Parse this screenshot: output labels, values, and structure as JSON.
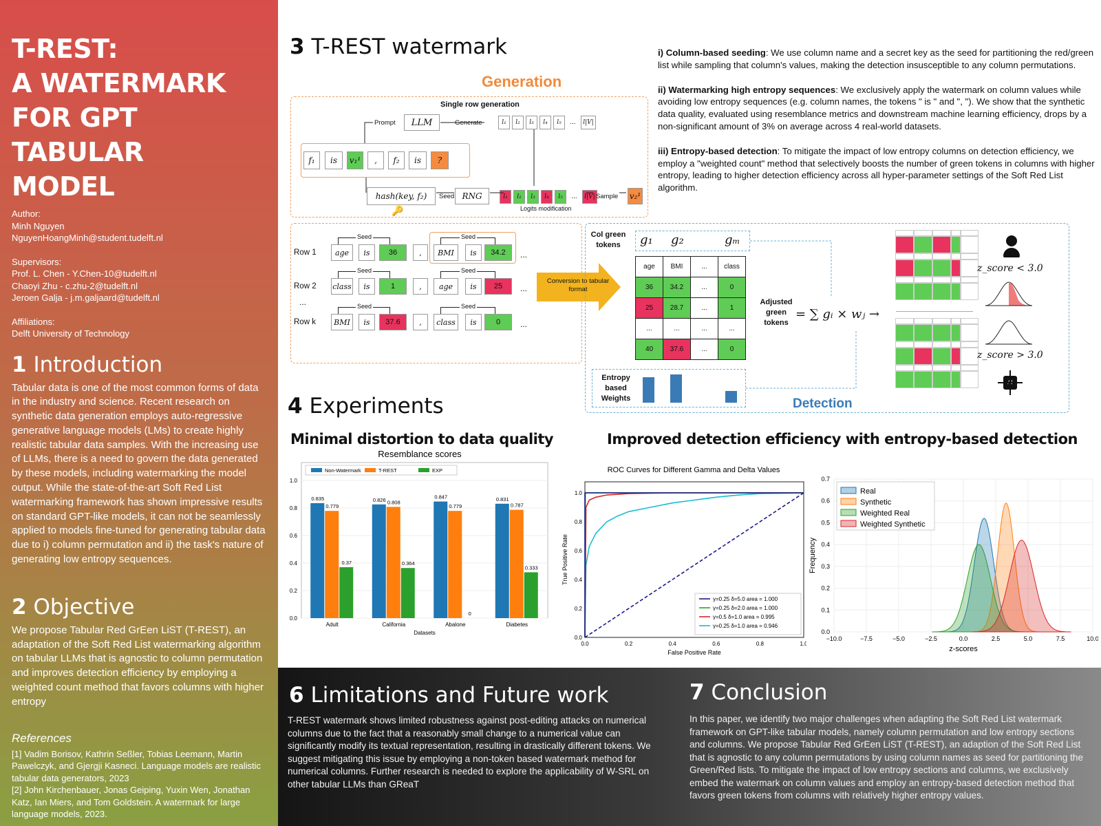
{
  "poster": {
    "title": [
      "T-REST:",
      "A WATERMARK",
      "FOR GPT TABULAR",
      "MODEL"
    ],
    "author_label": "Author:",
    "author_name": "Minh Nguyen",
    "author_email": "NguyenHoangMinh@student.tudelft.nl",
    "supervisors_label": "Supervisors:",
    "supervisors": [
      "Prof. L. Chen -  Y.Chen-10@tudelft.nl",
      "Chaoyi Zhu - c.zhu-2@tudelft.nl",
      "Jeroen Galja - j.m.galjaard@tudelft.nl"
    ],
    "affiliations_label": "Affiliations:",
    "affiliation": "Delft University of Technology"
  },
  "intro": {
    "num": "1",
    "title": "Introduction",
    "text": "Tabular data is one of the most common forms of data in the industry and science. Recent research on synthetic data generation employs auto-regressive generative language models (LMs) to create highly realistic tabular data samples. With the increasing use of LLMs, there is a need to govern the data generated by these models, including watermarking the model output. While the state-of-the-art Soft Red List watermarking framework has shown impressive results on standard GPT-like models, it can not be seamlessly applied to models fine-tuned for generating tabular data due to i) column permutation and ii) the task's nature of generating low entropy sequences."
  },
  "objective": {
    "num": "2",
    "title": "Objective",
    "text": "We propose Tabular Red GrEen LiST (T-REST), an adaptation of the Soft Red List watermarking algorithm on tabular LLMs that is agnostic to column permutation and improves detection efficiency by employing a weighted count method that favors columns with higher entropy"
  },
  "references": {
    "title": "References",
    "items": [
      "[1] Vadim Borisov, Kathrin Seßler, Tobias Leemann, Martin Pawelczyk, and Gjergji Kasneci. Language models are realistic tabular data generators, 2023",
      "[2] John Kirchenbauer, Jonas Geiping, Yuxin Wen, Jonathan Katz, Ian Miers, and Tom Goldstein. A watermark for large language models, 2023."
    ]
  },
  "watermark": {
    "num": "3",
    "title": "T-REST watermark",
    "generation_label": "Generation",
    "single_row": "Single row generation",
    "prompt": "Prompt",
    "llm": "LLM",
    "generate": "Generate",
    "vocab": [
      "l₁",
      "l₂",
      "l₃",
      "l₄",
      "l₅",
      "...",
      "l|V|"
    ],
    "input_tokens": [
      "f₁",
      "is",
      "v₁¹",
      ",",
      "f₂",
      "is",
      "?"
    ],
    "hash": "hash(key, f₂)",
    "seed": "Seed",
    "rng": "RNG",
    "sample": "Sample",
    "sampled": "v₂¹",
    "logits_label": "Logits modification",
    "rows": [
      {
        "label": "Row 1",
        "toks": [
          "age",
          "is",
          "36",
          ",",
          "BMI",
          "is",
          "34.2"
        ]
      },
      {
        "label": "Row 2",
        "toks": [
          "class",
          "is",
          "1",
          ",",
          "age",
          "is",
          "25"
        ]
      },
      {
        "label": "Row k",
        "toks": [
          "BMI",
          "is",
          "37.6",
          ",",
          "class",
          "is",
          "0"
        ]
      }
    ],
    "row_ellipsis": "...",
    "dots": "...",
    "conversion": "Conversion to tabular format",
    "col_green": "Col green tokens",
    "g_labels": [
      "g₁",
      "g₂",
      "gₘ"
    ],
    "table_head": [
      "age",
      "BMI",
      "...",
      "class"
    ],
    "table_rows": [
      [
        "36",
        "34.2",
        "...",
        "0"
      ],
      [
        "25",
        "28.7",
        "...",
        "1"
      ],
      [
        "...",
        "...",
        "...",
        "..."
      ],
      [
        "40",
        "37.6",
        "...",
        "0"
      ]
    ],
    "adjusted": "Adjusted green tokens",
    "formula": "= ∑ gᵢ × wⱼ →",
    "z_low": "z_score < 3.0",
    "z_high": "z_score > 3.0",
    "entropy_label": "Entropy based Weights",
    "detection_label": "Detection"
  },
  "methods": [
    {
      "head": "i) Column-based seeding",
      "text": ": We use column name and a secret key as the seed for partitioning the red/green list while sampling that column's values, making the detection insusceptible to any column permutations."
    },
    {
      "head": "ii) Watermarking high entropy sequences",
      "text": ": We exclusively apply the watermark on column values while avoiding low entropy sequences (e.g. column names, the tokens \" is \" and \", \"). We show that the synthetic data quality, evaluated using resemblance metrics and downstream machine learning efficiency, drops by a non-significant amount of 3% on average across 4 real-world datasets."
    },
    {
      "head": "iii) Entropy-based detection",
      "text": ": To mitigate the impact of low entropy columns on detection efficiency, we employ a \"weighted count\" method that selectively boosts the number of green tokens in columns with higher entropy, leading to higher detection efficiency across all hyper-parameter settings of the Soft Red List algorithm."
    }
  ],
  "experiments": {
    "num": "4",
    "title": "Experiments",
    "sub1": "Minimal distortion to data quality",
    "sub2": "Improved detection efficiency  with entropy-based detection"
  },
  "chart_data": [
    {
      "type": "bar",
      "title": "Resemblance scores",
      "xlabel": "Datasets",
      "ylabel": "",
      "categories": [
        "Adult",
        "California",
        "Abalone",
        "Diabetes"
      ],
      "ylim": [
        0,
        1.0
      ],
      "yticks": [
        "0.0",
        "0.2",
        "0.4",
        "0.6",
        "0.8",
        "1.0"
      ],
      "legend": "top",
      "series": [
        {
          "name": "Non-Watermark",
          "color": "#1f77b4",
          "values": [
            0.835,
            0.826,
            0.847,
            0.831
          ],
          "labels": [
            "0.835",
            "0.826",
            "0.847",
            "0.831"
          ]
        },
        {
          "name": "T-REST",
          "color": "#ff7f0e",
          "values": [
            0.779,
            0.808,
            0.779,
            0.787
          ],
          "labels": [
            "0.779",
            "0.808",
            "0.779",
            "0.787"
          ]
        },
        {
          "name": "EXP",
          "color": "#2ca02c",
          "values": [
            0.37,
            0.364,
            0,
            0.333
          ],
          "labels": [
            "0.37",
            "0.364",
            "0",
            "0.333"
          ]
        }
      ]
    },
    {
      "type": "line",
      "title": "ROC Curves for Different Gamma and Delta Values",
      "xlabel": "False Positive Rate",
      "ylabel": "True Positive Rate",
      "xlim": [
        0,
        1
      ],
      "ylim": [
        0,
        1
      ],
      "ticks": [
        "0.0",
        "0.2",
        "0.4",
        "0.6",
        "0.8",
        "1.0"
      ],
      "legend": "bottom-right",
      "series": [
        {
          "name": "γ=0.25 δ=5.0 area = 1.000",
          "color": "#1a1a8c",
          "x": [
            0,
            0,
            1
          ],
          "y": [
            0,
            1,
            1
          ]
        },
        {
          "name": "γ=0.25 δ=2.0 area = 1.000",
          "color": "#2ca02c",
          "x": [
            0,
            0.002,
            1
          ],
          "y": [
            0,
            1,
            1
          ]
        },
        {
          "name": "γ=0.5 δ=1.0 area = 0.995",
          "color": "#d62728",
          "x": [
            0,
            0.005,
            0.02,
            0.05,
            0.1,
            0.2,
            0.4,
            1
          ],
          "y": [
            0,
            0.9,
            0.95,
            0.97,
            0.985,
            0.995,
            1,
            1
          ]
        },
        {
          "name": "γ=0.25 δ=1.0 area = 0.946",
          "color": "#17becf",
          "x": [
            0,
            0.005,
            0.02,
            0.05,
            0.1,
            0.15,
            0.2,
            0.3,
            0.4,
            0.5,
            0.6,
            0.7,
            0.8,
            1
          ],
          "y": [
            0,
            0.5,
            0.63,
            0.72,
            0.8,
            0.84,
            0.87,
            0.9,
            0.93,
            0.95,
            0.97,
            0.985,
            0.995,
            1
          ]
        }
      ]
    },
    {
      "type": "area",
      "title": "",
      "xlabel": "z-scores",
      "ylabel": "Frequency",
      "xlim": [
        -10,
        10
      ],
      "ylim": [
        0,
        0.7
      ],
      "xticks": [
        "−10.0",
        "−7.5",
        "−5.0",
        "−2.5",
        "0.0",
        "2.5",
        "5.0",
        "7.5",
        "10.0"
      ],
      "yticks": [
        "0.0",
        "0.1",
        "0.2",
        "0.3",
        "0.4",
        "0.5",
        "0.6",
        "0.7"
      ],
      "legend": "top-left",
      "series": [
        {
          "name": "Real",
          "color": "#1f77b4",
          "mean": 1.6,
          "sd": 0.75,
          "peak": 0.52
        },
        {
          "name": "Synthetic",
          "color": "#ff7f0e",
          "mean": 3.3,
          "sd": 0.65,
          "peak": 0.59
        },
        {
          "name": "Weighted Real",
          "color": "#2ca02c",
          "mean": 1.2,
          "sd": 0.9,
          "peak": 0.4
        },
        {
          "name": "Weighted Synthetic",
          "color": "#d62728",
          "mean": 4.5,
          "sd": 0.95,
          "peak": 0.42
        }
      ]
    }
  ],
  "limitations": {
    "num": "6",
    "title": "Limitations and Future work",
    "text": "T-REST watermark shows limited robustness against post-editing attacks on numerical columns due to the fact that a reasonably small change to a numerical value can significantly modify its textual representation, resulting in drastically different tokens. We suggest mitigating this issue by employing a non-token based watermark method for numerical columns. Further research is needed to explore the applicability of W-SRL on other tabular LLMs than GReaT"
  },
  "conclusion": {
    "num": "7",
    "title": "Conclusion",
    "text": "In this paper, we identify two major challenges when adapting the Soft Red List watermark framework on GPT-like tabular models, namely column permutation and low entropy sections and columns. We propose Tabular Red GrEen LiST (T-REST), an adaption of the Soft Red List that is agnostic to any column permutations by using column names as seed for partitioning the Green/Red lists. To mitigate the impact of low entropy sections and columns, we exclusively embed the watermark on column values and employ an entropy-based detection method that favors green tokens from columns with relatively higher entropy values."
  },
  "colors": {
    "green": "#5fcc55",
    "red": "#e8335e",
    "orange": "#f58b3f",
    "arrow": "#f2b31e",
    "detection_blue": "#3a7bb5"
  }
}
